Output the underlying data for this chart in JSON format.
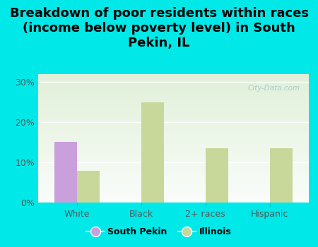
{
  "title": "Breakdown of poor residents within races\n(income below poverty level) in South\nPekin, IL",
  "categories": [
    "White",
    "Black",
    "2+ races",
    "Hispanic"
  ],
  "south_pekin": [
    15.2,
    0,
    0,
    0
  ],
  "illinois": [
    8.0,
    25.0,
    13.5,
    13.5
  ],
  "sp_color": "#c9a0dc",
  "il_color": "#c8d89a",
  "bg_outer": "#00e8e8",
  "ylim": [
    0,
    32
  ],
  "yticks": [
    0,
    10,
    20,
    30
  ],
  "ytick_labels": [
    "0%",
    "10%",
    "20%",
    "30%"
  ],
  "bar_width": 0.35,
  "legend_sp": "South Pekin",
  "legend_il": "Illinois",
  "watermark": "City-Data.com",
  "title_fontsize": 13,
  "axis_label_fontsize": 9,
  "legend_fontsize": 9
}
